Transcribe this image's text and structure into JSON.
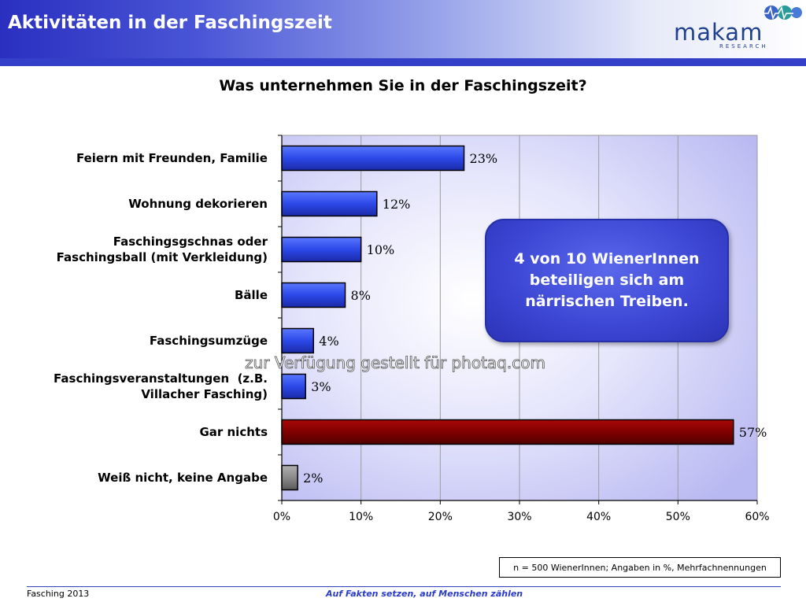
{
  "header": {
    "title": "Aktivitäten in der Faschingszeit"
  },
  "logo": {
    "name": "makam",
    "subtitle": "RESEARCH"
  },
  "question": "Was unternehmen Sie in der Faschingszeit?",
  "callout": {
    "line1": "4 von 10 WienerInnen",
    "line2": "beteiligen sich am",
    "line3": "närrischen Treiben."
  },
  "watermark": "zur Verfügung gestellt für photaq.com",
  "note": "n = 500 WienerInnen; Angaben in %, Mehrfachnennungen",
  "footer": {
    "left": "Fasching 2013",
    "center": "Auf Fakten setzen, auf Menschen zählen"
  },
  "colors": {
    "bar_blue": "#2c48e8",
    "bar_red": "#800000",
    "bar_gray": "#8a8a8a",
    "plot_bg": "#c8c8f8",
    "header_blue": "#2a2fc0"
  },
  "chart_data": {
    "type": "bar",
    "orientation": "horizontal",
    "title": "Was unternehmen Sie in der Faschingszeit?",
    "categories": [
      [
        "Feiern mit Freunden, Familie"
      ],
      [
        "Wohnung dekorieren"
      ],
      [
        "Faschingsgschnas oder",
        "Faschingsball (mit Verkleidung)"
      ],
      [
        "Bälle"
      ],
      [
        "Faschingsumzüge"
      ],
      [
        "Faschingsveranstaltungen  (z.B.",
        "Villacher Fasching)"
      ],
      [
        "Gar nichts"
      ],
      [
        "Weiß nicht, keine Angabe"
      ]
    ],
    "values": [
      23,
      12,
      10,
      8,
      4,
      3,
      57,
      2
    ],
    "value_labels": [
      "23%",
      "12%",
      "10%",
      "8%",
      "4%",
      "3%",
      "57%",
      "2%"
    ],
    "bar_colors": [
      "blue",
      "blue",
      "blue",
      "blue",
      "blue",
      "blue",
      "red",
      "gray"
    ],
    "xlim": [
      0,
      60
    ],
    "xticks": [
      0,
      10,
      20,
      30,
      40,
      50,
      60
    ],
    "xtick_labels": [
      "0%",
      "10%",
      "20%",
      "30%",
      "40%",
      "50%",
      "60%"
    ],
    "grid": true,
    "xlabel": "",
    "ylabel": ""
  }
}
